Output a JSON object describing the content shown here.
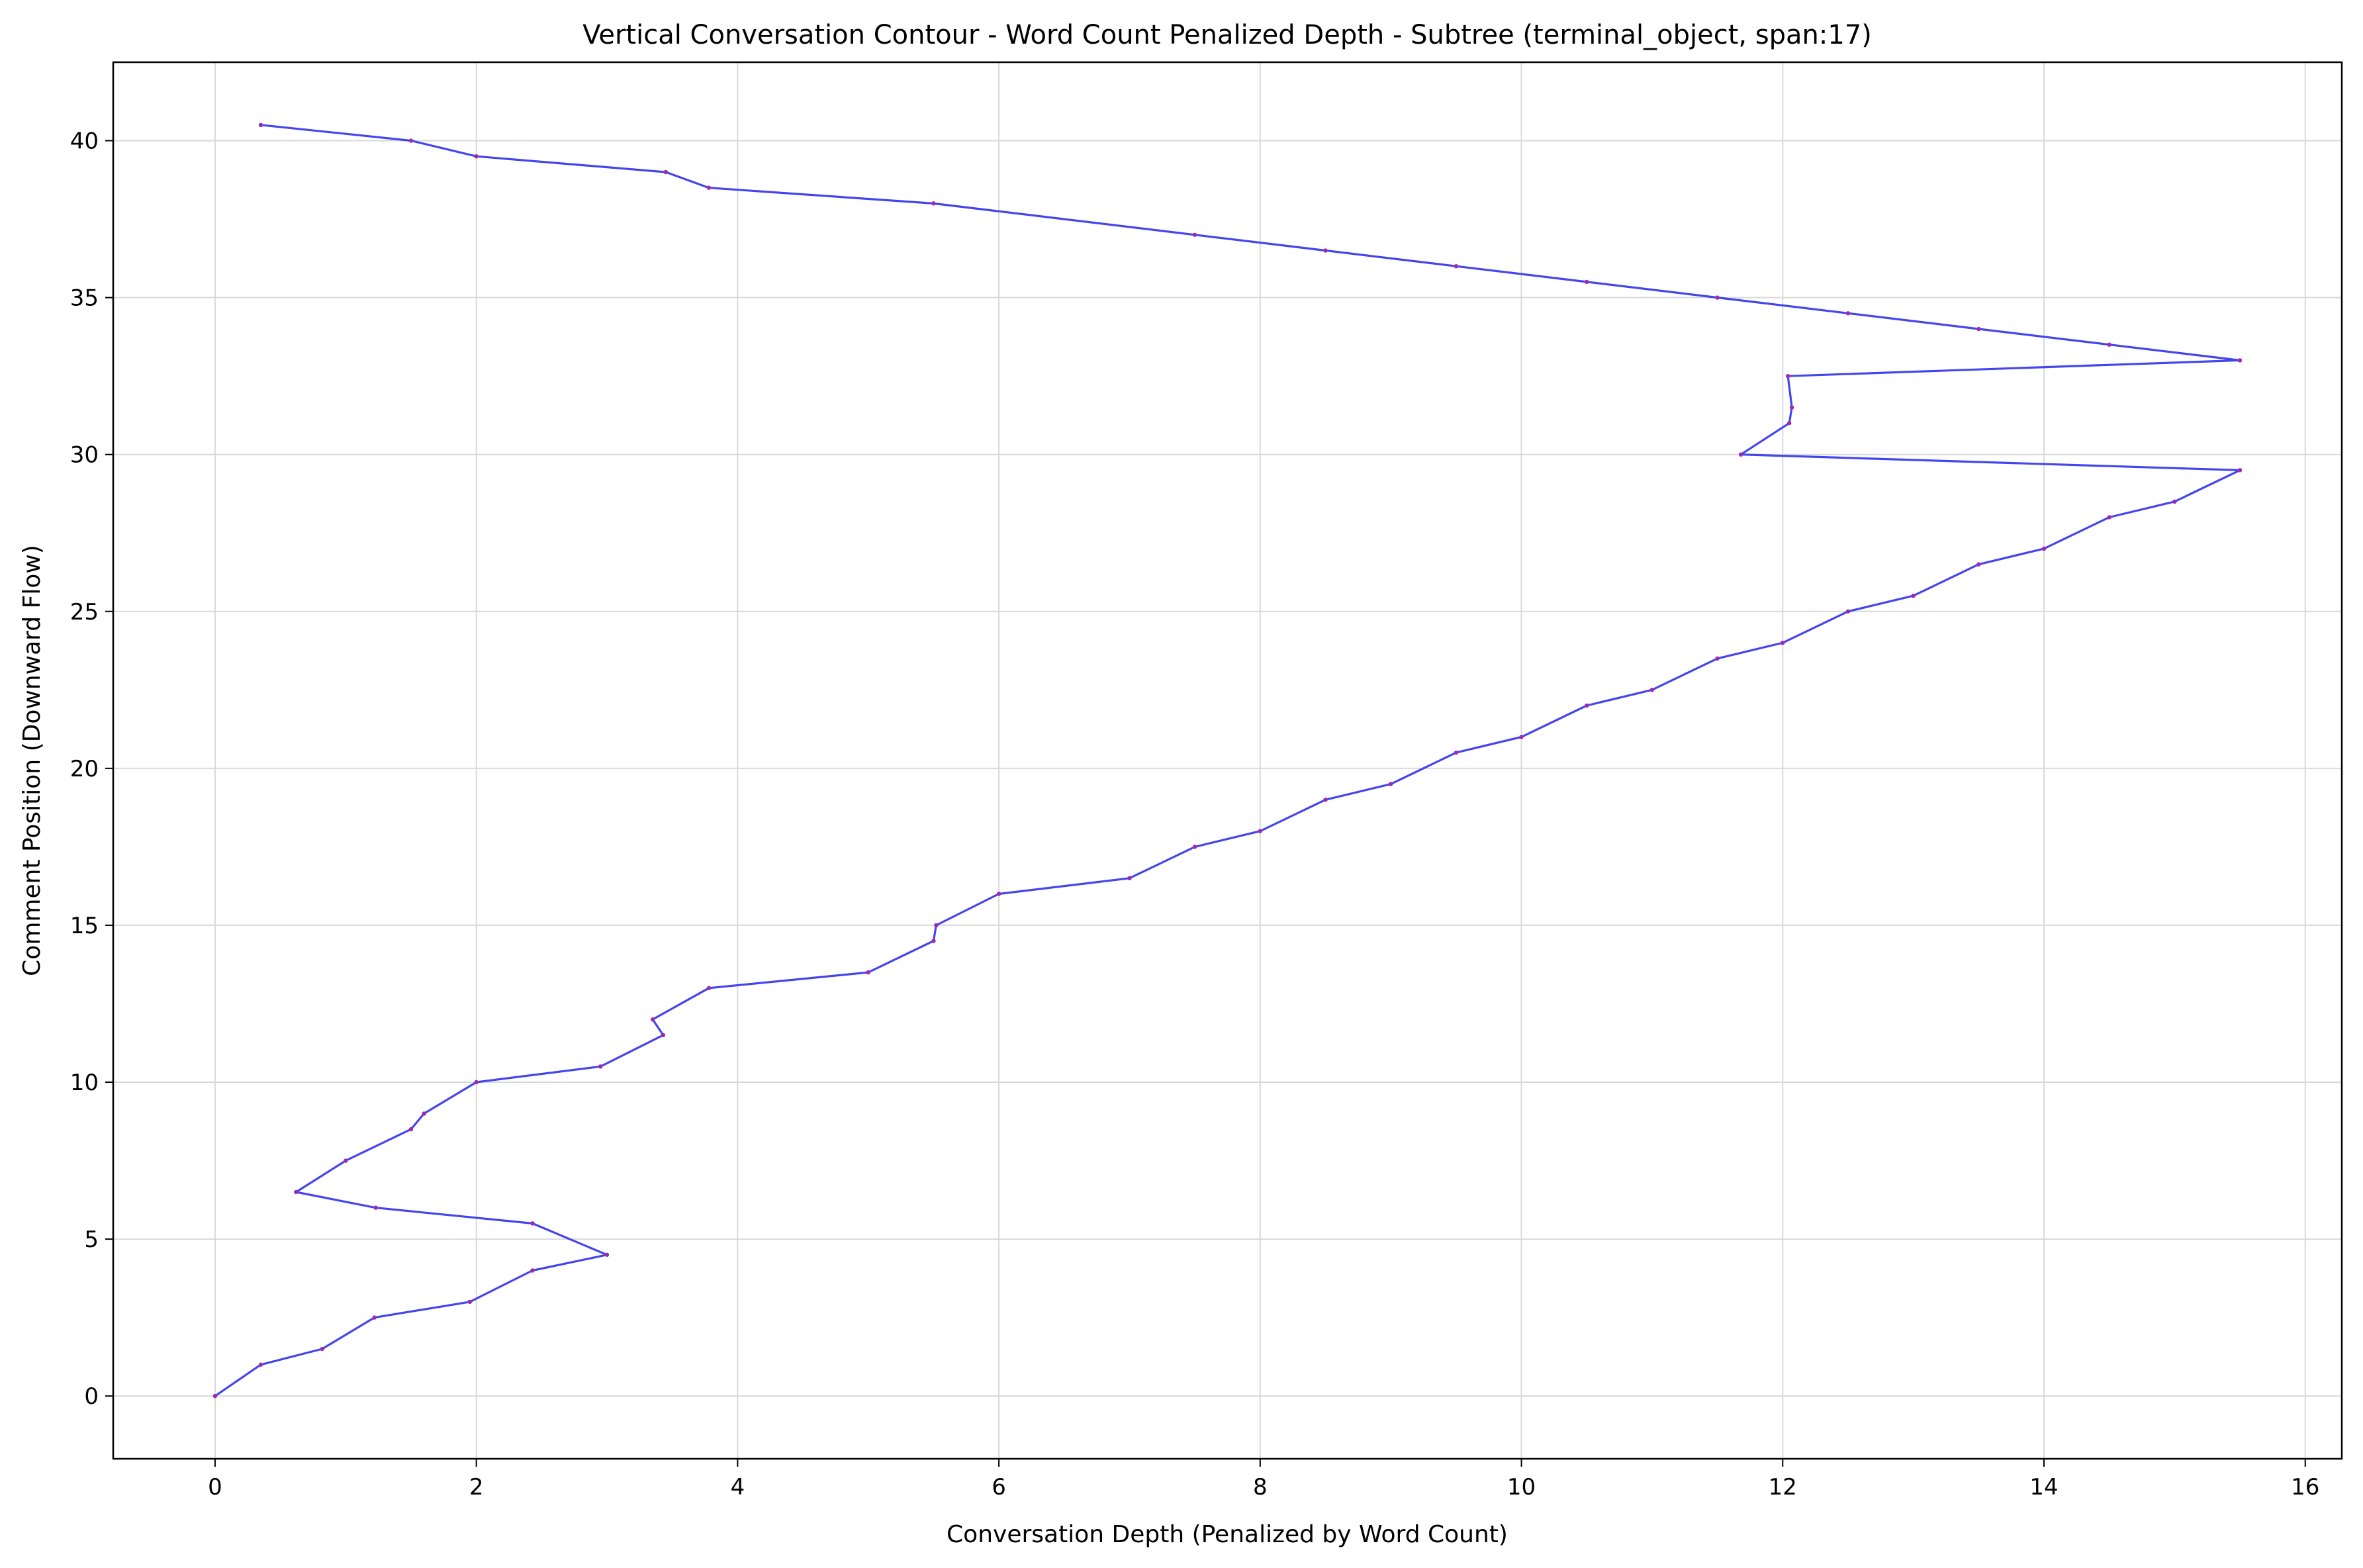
{
  "chart_data": {
    "type": "line",
    "title": "Vertical Conversation Contour - Word Count Penalized Depth - Subtree (terminal_object, span:17)",
    "xlabel": "Conversation Depth (Penalized by Word Count)",
    "ylabel": "Comment Position (Downward Flow)",
    "xlim": [
      -0.78,
      16.28
    ],
    "ylim": [
      -2.0,
      42.5
    ],
    "xticks": [
      0,
      2,
      4,
      6,
      8,
      10,
      12,
      14,
      16
    ],
    "yticks": [
      0,
      5,
      10,
      15,
      20,
      25,
      30,
      35,
      40
    ],
    "grid": true,
    "line_color": "#3b3bef",
    "marker_color": "#9b2bb0",
    "series": [
      {
        "x": [
          0,
          0.35,
          0.82,
          1.22,
          1.95,
          2.43,
          3.0,
          2.43,
          1.23,
          0.62,
          1.0,
          1.5,
          1.6,
          2.0,
          2.95,
          3.43,
          3.35,
          3.78,
          5.0,
          5.5,
          5.52,
          6.0,
          7.0,
          7.5,
          8.0,
          8.5,
          9.0,
          9.5,
          10.0,
          10.5,
          11.0,
          11.5,
          12.0,
          12.5,
          13.0,
          13.5,
          14.0,
          14.5,
          15.0,
          15.5,
          11.68,
          12.05,
          12.07,
          12.04,
          15.5,
          14.5,
          13.5,
          12.5,
          11.5,
          10.5,
          9.5,
          8.5,
          7.5,
          5.5,
          3.78,
          3.45,
          2.0,
          1.5,
          0.35
        ],
        "y": [
          0,
          1.0,
          1.5,
          2.5,
          3.0,
          4.0,
          4.5,
          5.5,
          6.0,
          6.5,
          7.5,
          8.5,
          9.0,
          10.0,
          10.5,
          11.5,
          12.0,
          13.0,
          13.5,
          14.5,
          15.0,
          16.0,
          16.5,
          17.5,
          18.0,
          19.0,
          19.5,
          20.5,
          21.0,
          22.0,
          22.5,
          23.5,
          24.0,
          25.0,
          25.5,
          26.5,
          27.0,
          28.0,
          28.5,
          29.5,
          30.0,
          31.0,
          31.5,
          32.5,
          33.0,
          33.5,
          34.0,
          34.5,
          35.0,
          35.5,
          36.0,
          36.5,
          37.0,
          38.0,
          38.5,
          39.0,
          39.5,
          40.0,
          40.5
        ]
      }
    ]
  }
}
